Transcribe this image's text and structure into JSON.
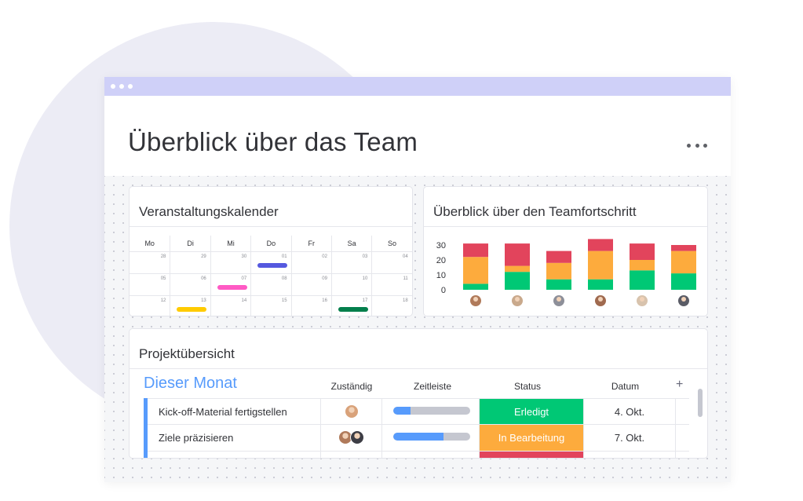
{
  "window": {
    "title": "Überblick über das Team",
    "titlebar_color": "#cfd0f8"
  },
  "calendar": {
    "title": "Veranstaltungskalender",
    "weekdays": [
      "Mo",
      "Di",
      "Mi",
      "Do",
      "Fr",
      "Sa",
      "So"
    ],
    "weeks": [
      [
        "28",
        "29",
        "30",
        "01",
        "02",
        "03",
        "04"
      ],
      [
        "05",
        "06",
        "07",
        "08",
        "09",
        "10",
        "11"
      ],
      [
        "12",
        "13",
        "14",
        "15",
        "16",
        "17",
        "18"
      ]
    ],
    "events": [
      {
        "week": 0,
        "day": 3,
        "color": "#5559df"
      },
      {
        "week": 1,
        "day": 2,
        "color": "#ff5ac4"
      },
      {
        "week": 2,
        "day": 1,
        "color": "#ffcb00"
      },
      {
        "week": 2,
        "day": 5,
        "color": "#037f4c"
      }
    ]
  },
  "progress": {
    "title": "Überblick über den Teamfortschritt"
  },
  "chart_data": {
    "type": "bar",
    "stacked": true,
    "categories": [
      "",
      "",
      "",
      "",
      "",
      ""
    ],
    "series": [
      {
        "color": "#00c875",
        "values": [
          4,
          12,
          7,
          7,
          13,
          11
        ]
      },
      {
        "color": "#fdab3d",
        "values": [
          18,
          4,
          11,
          19,
          7,
          15
        ]
      },
      {
        "color": "#e2445c",
        "values": [
          9,
          15,
          8,
          8,
          11,
          4
        ]
      }
    ],
    "yticks": [
      "0",
      "10",
      "20",
      "30"
    ],
    "ylim": [
      0,
      35
    ],
    "grid": false
  },
  "project": {
    "title": "Projektübersicht",
    "group_title": "Dieser Monat",
    "group_color": "#579bfc",
    "columns": {
      "owner": "Zuständig",
      "timeline": "Zeitleiste",
      "status": "Status",
      "date": "Datum"
    },
    "add_column_icon": "+",
    "rows": [
      {
        "task": "Kick-off-Material fertigstellen",
        "timeline_progress": 0.22,
        "status": "Erledigt",
        "status_color": "#00c875",
        "date": "4. Okt."
      },
      {
        "task": "Ziele präzisieren",
        "timeline_progress": 0.65,
        "status": "In Bearbeitung",
        "status_color": "#fdab3d",
        "date": "7. Okt."
      }
    ]
  }
}
